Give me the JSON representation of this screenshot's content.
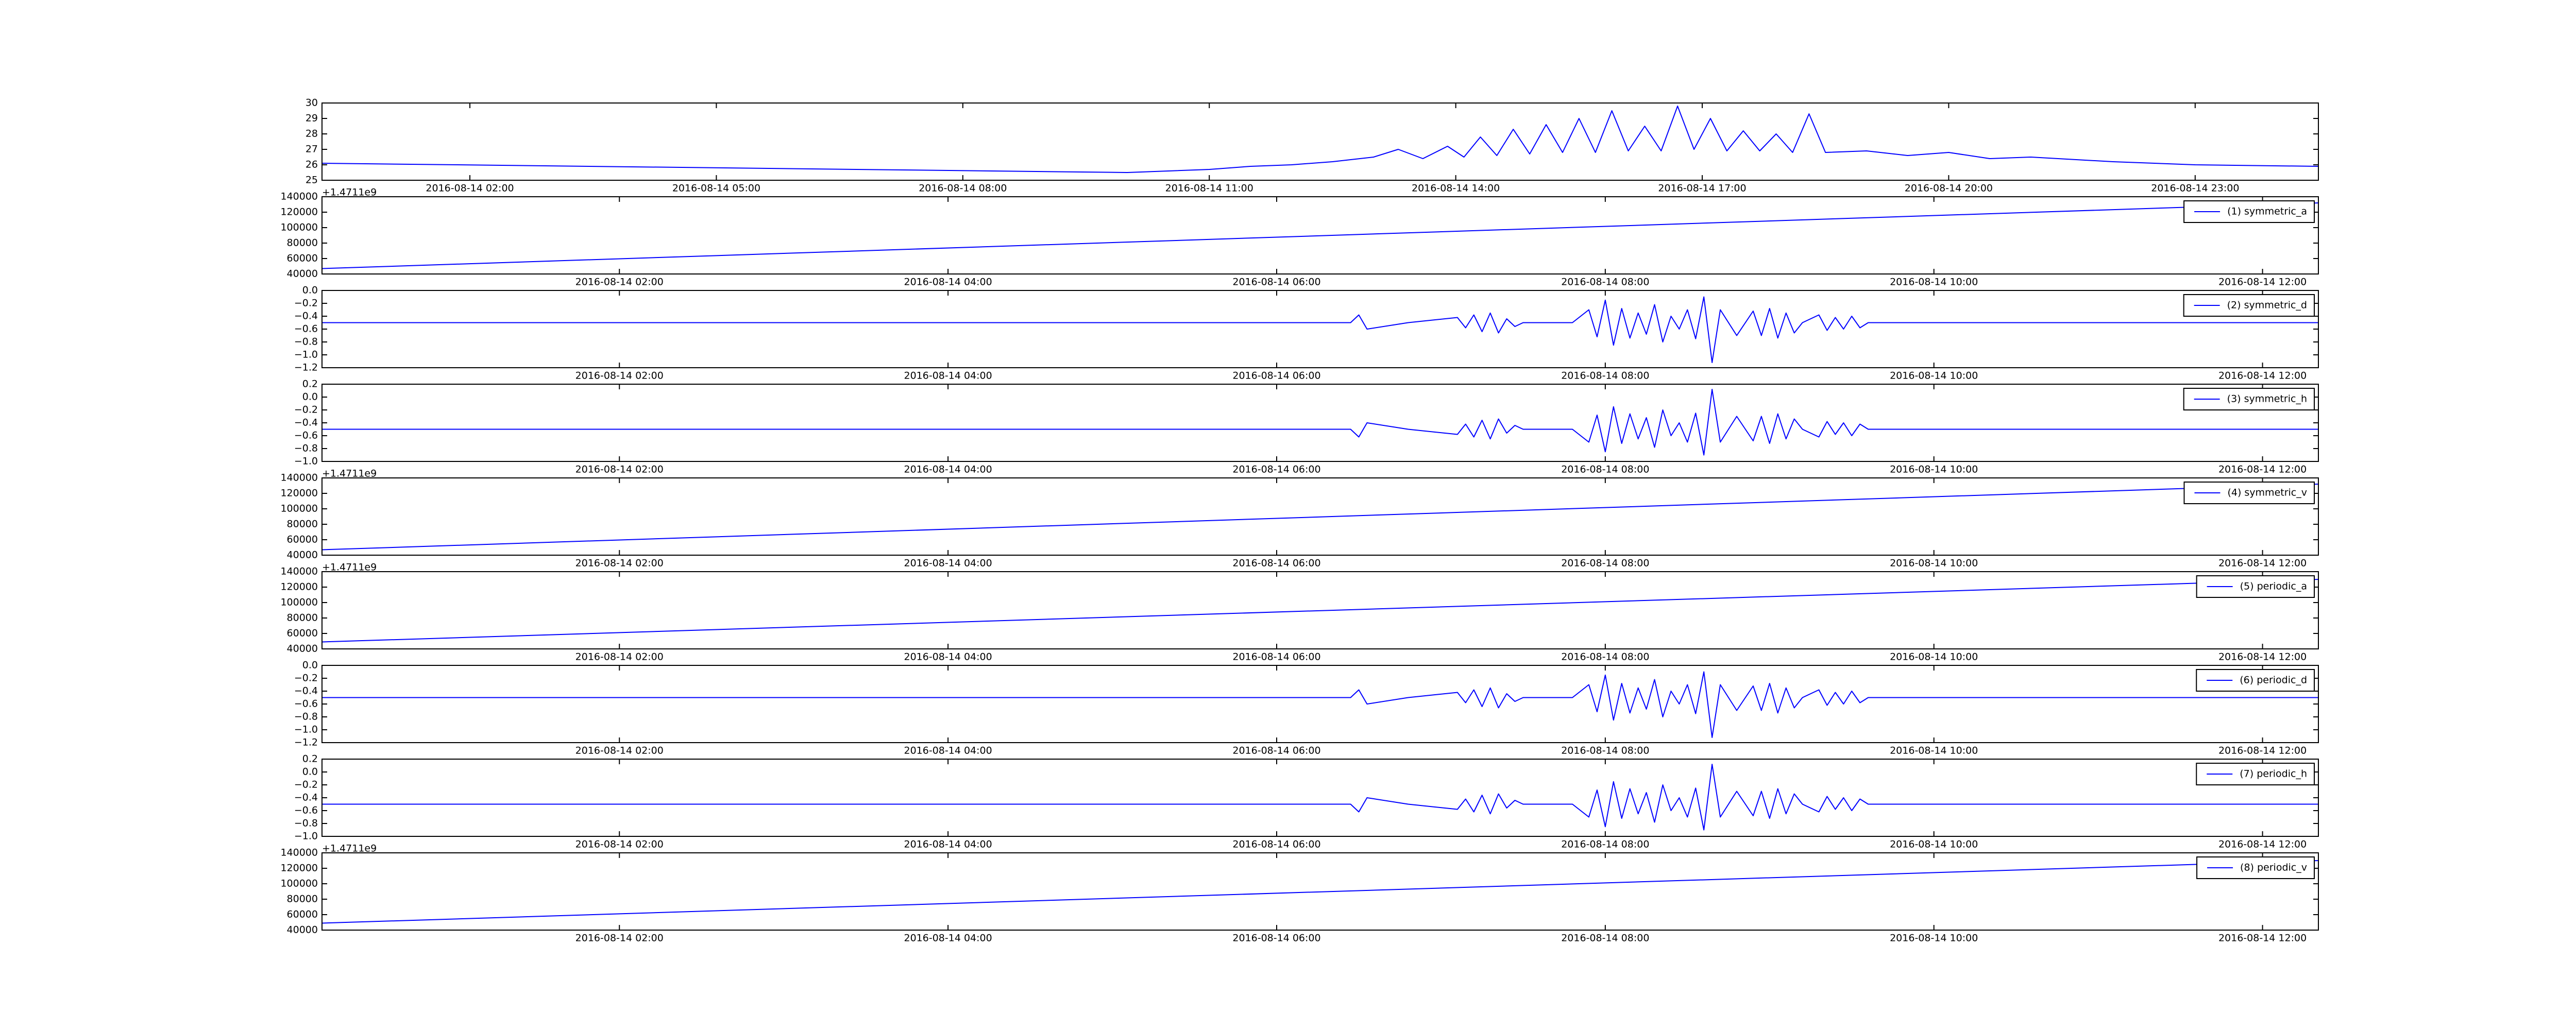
{
  "chart_data": [
    {
      "type": "line",
      "xlim": [
        0.2,
        24.5
      ],
      "ylim": [
        25,
        30
      ],
      "yticks": [
        25,
        26,
        27,
        28,
        29,
        30
      ],
      "xticks": [
        {
          "value": 2,
          "label": "2016-08-14 02:00"
        },
        {
          "value": 5,
          "label": "2016-08-14 05:00"
        },
        {
          "value": 8,
          "label": "2016-08-14 08:00"
        },
        {
          "value": 11,
          "label": "2016-08-14 11:00"
        },
        {
          "value": 14,
          "label": "2016-08-14 14:00"
        },
        {
          "value": 17,
          "label": "2016-08-14 17:00"
        },
        {
          "value": 20,
          "label": "2016-08-14 20:00"
        },
        {
          "value": 23,
          "label": "2016-08-14 23:00"
        }
      ],
      "x": [
        0.2,
        10.0,
        10.5,
        11.0,
        11.5,
        12.0,
        12.5,
        13.0,
        13.3,
        13.6,
        13.9,
        14.1,
        14.3,
        14.5,
        14.7,
        14.9,
        15.1,
        15.3,
        15.5,
        15.7,
        15.9,
        16.1,
        16.3,
        16.5,
        16.7,
        16.9,
        17.1,
        17.3,
        17.5,
        17.7,
        17.9,
        18.1,
        18.3,
        18.5,
        19.0,
        19.5,
        20.0,
        20.5,
        21.0,
        22.0,
        23.0,
        24.5
      ],
      "series": [
        {
          "color": "#0000ff",
          "values": [
            26.1,
            25.5,
            25.6,
            25.7,
            25.9,
            26.0,
            26.2,
            26.5,
            27.0,
            26.4,
            27.2,
            26.5,
            27.8,
            26.6,
            28.3,
            26.7,
            28.6,
            26.8,
            29.0,
            26.8,
            29.5,
            26.9,
            28.5,
            26.9,
            29.8,
            27.0,
            29.0,
            26.9,
            28.2,
            26.9,
            28.0,
            26.8,
            29.3,
            26.8,
            26.9,
            26.6,
            26.8,
            26.4,
            26.5,
            26.2,
            26.0,
            25.9
          ]
        }
      ]
    },
    {
      "type": "line",
      "offset_text": "+1.4711e9",
      "legend": "upper right",
      "xlim": [
        0.19,
        12.34
      ],
      "ylim": [
        40000,
        140000
      ],
      "yticks": [
        40000,
        60000,
        80000,
        100000,
        120000,
        140000
      ],
      "xticks": [
        {
          "value": 2,
          "label": "2016-08-14 02:00"
        },
        {
          "value": 4,
          "label": "2016-08-14 04:00"
        },
        {
          "value": 6,
          "label": "2016-08-14 06:00"
        },
        {
          "value": 8,
          "label": "2016-08-14 08:00"
        },
        {
          "value": 10,
          "label": "2016-08-14 10:00"
        },
        {
          "value": 12,
          "label": "2016-08-14 12:00"
        }
      ],
      "x": [
        0.19,
        12.34
      ],
      "series": [
        {
          "name": "(1) symmetric_a",
          "color": "#0000ff",
          "values": [
            47000,
            132000
          ]
        }
      ]
    },
    {
      "type": "line",
      "legend": "upper right",
      "xlim": [
        0.19,
        12.34
      ],
      "ylim": [
        -1.2,
        0.0
      ],
      "yticks": [
        {
          "value": -1.2,
          "label": "−1.2"
        },
        {
          "value": -1.0,
          "label": "−1.0"
        },
        {
          "value": -0.8,
          "label": "−0.8"
        },
        {
          "value": -0.6,
          "label": "−0.6"
        },
        {
          "value": -0.4,
          "label": "−0.4"
        },
        {
          "value": -0.2,
          "label": "−0.2"
        },
        {
          "value": 0.0,
          "label": "0.0"
        }
      ],
      "xticks": [
        {
          "value": 2,
          "label": "2016-08-14 02:00"
        },
        {
          "value": 4,
          "label": "2016-08-14 04:00"
        },
        {
          "value": 6,
          "label": "2016-08-14 06:00"
        },
        {
          "value": 8,
          "label": "2016-08-14 08:00"
        },
        {
          "value": 10,
          "label": "2016-08-14 10:00"
        },
        {
          "value": 12,
          "label": "2016-08-14 12:00"
        }
      ],
      "x": [
        0.19,
        5.0,
        6.0,
        6.45,
        6.5,
        6.55,
        6.8,
        7.1,
        7.15,
        7.2,
        7.25,
        7.3,
        7.35,
        7.4,
        7.45,
        7.5,
        7.6,
        7.8,
        7.9,
        7.95,
        8.0,
        8.05,
        8.1,
        8.15,
        8.2,
        8.25,
        8.3,
        8.35,
        8.4,
        8.45,
        8.5,
        8.55,
        8.6,
        8.65,
        8.7,
        8.8,
        8.9,
        8.95,
        9.0,
        9.05,
        9.1,
        9.15,
        9.2,
        9.3,
        9.35,
        9.4,
        9.45,
        9.5,
        9.55,
        9.6,
        9.7,
        10.0,
        11.0,
        12.34
      ],
      "series": [
        {
          "name": "(2) symmetric_d",
          "color": "#0000ff",
          "values": [
            -0.5,
            -0.5,
            -0.5,
            -0.5,
            -0.38,
            -0.6,
            -0.5,
            -0.42,
            -0.58,
            -0.38,
            -0.64,
            -0.35,
            -0.66,
            -0.44,
            -0.56,
            -0.5,
            -0.5,
            -0.5,
            -0.3,
            -0.72,
            -0.15,
            -0.85,
            -0.28,
            -0.74,
            -0.35,
            -0.68,
            -0.22,
            -0.8,
            -0.4,
            -0.6,
            -0.3,
            -0.75,
            -0.1,
            -1.12,
            -0.3,
            -0.7,
            -0.32,
            -0.7,
            -0.28,
            -0.74,
            -0.35,
            -0.66,
            -0.5,
            -0.38,
            -0.62,
            -0.42,
            -0.6,
            -0.4,
            -0.58,
            -0.5,
            -0.5,
            -0.5,
            -0.5,
            -0.5
          ]
        }
      ]
    },
    {
      "type": "line",
      "legend": "upper right",
      "xlim": [
        0.19,
        12.34
      ],
      "ylim": [
        -1.0,
        0.2
      ],
      "yticks": [
        {
          "value": -1.0,
          "label": "−1.0"
        },
        {
          "value": -0.8,
          "label": "−0.8"
        },
        {
          "value": -0.6,
          "label": "−0.6"
        },
        {
          "value": -0.4,
          "label": "−0.4"
        },
        {
          "value": -0.2,
          "label": "−0.2"
        },
        {
          "value": 0.0,
          "label": "0.0"
        },
        {
          "value": 0.2,
          "label": "0.2"
        }
      ],
      "xticks": [
        {
          "value": 2,
          "label": "2016-08-14 02:00"
        },
        {
          "value": 4,
          "label": "2016-08-14 04:00"
        },
        {
          "value": 6,
          "label": "2016-08-14 06:00"
        },
        {
          "value": 8,
          "label": "2016-08-14 08:00"
        },
        {
          "value": 10,
          "label": "2016-08-14 10:00"
        },
        {
          "value": 12,
          "label": "2016-08-14 12:00"
        }
      ],
      "x": [
        0.19,
        5.0,
        6.0,
        6.45,
        6.5,
        6.55,
        6.8,
        7.1,
        7.15,
        7.2,
        7.25,
        7.3,
        7.35,
        7.4,
        7.45,
        7.5,
        7.6,
        7.8,
        7.9,
        7.95,
        8.0,
        8.05,
        8.1,
        8.15,
        8.2,
        8.25,
        8.3,
        8.35,
        8.4,
        8.45,
        8.5,
        8.55,
        8.6,
        8.65,
        8.7,
        8.8,
        8.9,
        8.95,
        9.0,
        9.05,
        9.1,
        9.15,
        9.2,
        9.3,
        9.35,
        9.4,
        9.45,
        9.5,
        9.55,
        9.6,
        9.7,
        10.0,
        11.0,
        12.34
      ],
      "series": [
        {
          "name": "(3) symmetric_h",
          "color": "#0000ff",
          "values": [
            -0.5,
            -0.5,
            -0.5,
            -0.5,
            -0.62,
            -0.4,
            -0.5,
            -0.58,
            -0.42,
            -0.62,
            -0.36,
            -0.65,
            -0.34,
            -0.56,
            -0.44,
            -0.5,
            -0.5,
            -0.5,
            -0.7,
            -0.28,
            -0.85,
            -0.15,
            -0.72,
            -0.26,
            -0.65,
            -0.32,
            -0.78,
            -0.2,
            -0.6,
            -0.4,
            -0.7,
            -0.25,
            -0.9,
            0.12,
            -0.7,
            -0.3,
            -0.68,
            -0.3,
            -0.72,
            -0.26,
            -0.65,
            -0.34,
            -0.5,
            -0.62,
            -0.38,
            -0.58,
            -0.4,
            -0.6,
            -0.42,
            -0.5,
            -0.5,
            -0.5,
            -0.5,
            -0.5
          ]
        }
      ]
    },
    {
      "type": "line",
      "offset_text": "+1.4711e9",
      "legend": "upper right",
      "xlim": [
        0.19,
        12.34
      ],
      "ylim": [
        40000,
        140000
      ],
      "yticks": [
        40000,
        60000,
        80000,
        100000,
        120000,
        140000
      ],
      "xticks": [
        {
          "value": 2,
          "label": "2016-08-14 02:00"
        },
        {
          "value": 4,
          "label": "2016-08-14 04:00"
        },
        {
          "value": 6,
          "label": "2016-08-14 06:00"
        },
        {
          "value": 8,
          "label": "2016-08-14 08:00"
        },
        {
          "value": 10,
          "label": "2016-08-14 10:00"
        },
        {
          "value": 12,
          "label": "2016-08-14 12:00"
        }
      ],
      "x": [
        0.19,
        12.34
      ],
      "series": [
        {
          "name": "(4) symmetric_v",
          "color": "#0000ff",
          "values": [
            47000,
            132000
          ]
        }
      ]
    },
    {
      "type": "line",
      "offset_text": "+1.4711e9",
      "legend": "upper right",
      "xlim": [
        0.19,
        12.34
      ],
      "ylim": [
        40000,
        140000
      ],
      "yticks": [
        40000,
        60000,
        80000,
        100000,
        120000,
        140000
      ],
      "xticks": [
        {
          "value": 2,
          "label": "2016-08-14 02:00"
        },
        {
          "value": 4,
          "label": "2016-08-14 04:00"
        },
        {
          "value": 6,
          "label": "2016-08-14 06:00"
        },
        {
          "value": 8,
          "label": "2016-08-14 08:00"
        },
        {
          "value": 10,
          "label": "2016-08-14 10:00"
        },
        {
          "value": 12,
          "label": "2016-08-14 12:00"
        }
      ],
      "x": [
        0.19,
        12.34
      ],
      "series": [
        {
          "name": "(5) periodic_a",
          "color": "#0000ff",
          "values": [
            49000,
            130000
          ]
        }
      ]
    },
    {
      "type": "line",
      "legend": "upper right",
      "xlim": [
        0.19,
        12.34
      ],
      "ylim": [
        -1.2,
        0.0
      ],
      "yticks": [
        {
          "value": -1.2,
          "label": "−1.2"
        },
        {
          "value": -1.0,
          "label": "−1.0"
        },
        {
          "value": -0.8,
          "label": "−0.8"
        },
        {
          "value": -0.6,
          "label": "−0.6"
        },
        {
          "value": -0.4,
          "label": "−0.4"
        },
        {
          "value": -0.2,
          "label": "−0.2"
        },
        {
          "value": 0.0,
          "label": "0.0"
        }
      ],
      "xticks": [
        {
          "value": 2,
          "label": "2016-08-14 02:00"
        },
        {
          "value": 4,
          "label": "2016-08-14 04:00"
        },
        {
          "value": 6,
          "label": "2016-08-14 06:00"
        },
        {
          "value": 8,
          "label": "2016-08-14 08:00"
        },
        {
          "value": 10,
          "label": "2016-08-14 10:00"
        },
        {
          "value": 12,
          "label": "2016-08-14 12:00"
        }
      ],
      "x": [
        0.19,
        5.0,
        6.0,
        6.45,
        6.5,
        6.55,
        6.8,
        7.1,
        7.15,
        7.2,
        7.25,
        7.3,
        7.35,
        7.4,
        7.45,
        7.5,
        7.6,
        7.8,
        7.9,
        7.95,
        8.0,
        8.05,
        8.1,
        8.15,
        8.2,
        8.25,
        8.3,
        8.35,
        8.4,
        8.45,
        8.5,
        8.55,
        8.6,
        8.65,
        8.7,
        8.8,
        8.9,
        8.95,
        9.0,
        9.05,
        9.1,
        9.15,
        9.2,
        9.3,
        9.35,
        9.4,
        9.45,
        9.5,
        9.55,
        9.6,
        9.7,
        10.0,
        11.0,
        12.34
      ],
      "series": [
        {
          "name": "(6) periodic_d",
          "color": "#0000ff",
          "values": [
            -0.5,
            -0.5,
            -0.5,
            -0.5,
            -0.38,
            -0.6,
            -0.5,
            -0.42,
            -0.58,
            -0.38,
            -0.64,
            -0.35,
            -0.66,
            -0.44,
            -0.56,
            -0.5,
            -0.5,
            -0.5,
            -0.3,
            -0.72,
            -0.15,
            -0.85,
            -0.28,
            -0.74,
            -0.35,
            -0.68,
            -0.22,
            -0.8,
            -0.4,
            -0.6,
            -0.3,
            -0.75,
            -0.1,
            -1.12,
            -0.3,
            -0.7,
            -0.32,
            -0.7,
            -0.28,
            -0.74,
            -0.35,
            -0.66,
            -0.5,
            -0.38,
            -0.62,
            -0.42,
            -0.6,
            -0.4,
            -0.58,
            -0.5,
            -0.5,
            -0.5,
            -0.5,
            -0.5
          ]
        }
      ]
    },
    {
      "type": "line",
      "legend": "upper right",
      "xlim": [
        0.19,
        12.34
      ],
      "ylim": [
        -1.0,
        0.2
      ],
      "yticks": [
        {
          "value": -1.0,
          "label": "−1.0"
        },
        {
          "value": -0.8,
          "label": "−0.8"
        },
        {
          "value": -0.6,
          "label": "−0.6"
        },
        {
          "value": -0.4,
          "label": "−0.4"
        },
        {
          "value": -0.2,
          "label": "−0.2"
        },
        {
          "value": 0.0,
          "label": "0.0"
        },
        {
          "value": 0.2,
          "label": "0.2"
        }
      ],
      "xticks": [
        {
          "value": 2,
          "label": "2016-08-14 02:00"
        },
        {
          "value": 4,
          "label": "2016-08-14 04:00"
        },
        {
          "value": 6,
          "label": "2016-08-14 06:00"
        },
        {
          "value": 8,
          "label": "2016-08-14 08:00"
        },
        {
          "value": 10,
          "label": "2016-08-14 10:00"
        },
        {
          "value": 12,
          "label": "2016-08-14 12:00"
        }
      ],
      "x": [
        0.19,
        5.0,
        6.0,
        6.45,
        6.5,
        6.55,
        6.8,
        7.1,
        7.15,
        7.2,
        7.25,
        7.3,
        7.35,
        7.4,
        7.45,
        7.5,
        7.6,
        7.8,
        7.9,
        7.95,
        8.0,
        8.05,
        8.1,
        8.15,
        8.2,
        8.25,
        8.3,
        8.35,
        8.4,
        8.45,
        8.5,
        8.55,
        8.6,
        8.65,
        8.7,
        8.8,
        8.9,
        8.95,
        9.0,
        9.05,
        9.1,
        9.15,
        9.2,
        9.3,
        9.35,
        9.4,
        9.45,
        9.5,
        9.55,
        9.6,
        9.7,
        10.0,
        11.0,
        12.34
      ],
      "series": [
        {
          "name": "(7) periodic_h",
          "color": "#0000ff",
          "values": [
            -0.5,
            -0.5,
            -0.5,
            -0.5,
            -0.62,
            -0.4,
            -0.5,
            -0.58,
            -0.42,
            -0.62,
            -0.36,
            -0.65,
            -0.34,
            -0.56,
            -0.44,
            -0.5,
            -0.5,
            -0.5,
            -0.7,
            -0.28,
            -0.85,
            -0.15,
            -0.72,
            -0.26,
            -0.65,
            -0.32,
            -0.78,
            -0.2,
            -0.6,
            -0.4,
            -0.7,
            -0.25,
            -0.9,
            0.12,
            -0.7,
            -0.3,
            -0.68,
            -0.3,
            -0.72,
            -0.26,
            -0.65,
            -0.34,
            -0.5,
            -0.62,
            -0.38,
            -0.58,
            -0.4,
            -0.6,
            -0.42,
            -0.5,
            -0.5,
            -0.5,
            -0.5,
            -0.5
          ]
        }
      ]
    },
    {
      "type": "line",
      "offset_text": "+1.4711e9",
      "legend": "upper right",
      "xlim": [
        0.19,
        12.34
      ],
      "ylim": [
        40000,
        140000
      ],
      "yticks": [
        40000,
        60000,
        80000,
        100000,
        120000,
        140000
      ],
      "xticks": [
        {
          "value": 2,
          "label": "2016-08-14 02:00"
        },
        {
          "value": 4,
          "label": "2016-08-14 04:00"
        },
        {
          "value": 6,
          "label": "2016-08-14 06:00"
        },
        {
          "value": 8,
          "label": "2016-08-14 08:00"
        },
        {
          "value": 10,
          "label": "2016-08-14 10:00"
        },
        {
          "value": 12,
          "label": "2016-08-14 12:00"
        }
      ],
      "x": [
        0.19,
        12.34
      ],
      "series": [
        {
          "name": "(8) periodic_v",
          "color": "#0000ff",
          "values": [
            49000,
            130000
          ]
        }
      ]
    }
  ]
}
